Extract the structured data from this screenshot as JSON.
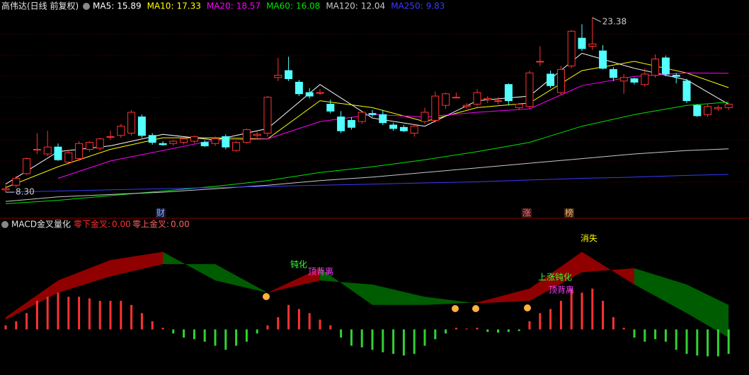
{
  "chart_data": [
    {
      "type": "candlestick",
      "title": "高伟达(日线 前复权)",
      "up_color": "#ff3232",
      "down_color": "#54ffff",
      "ylim": [
        6.6,
        23.8
      ],
      "candles": {
        "open": [
          8.5,
          8.9,
          9.9,
          12.0,
          11.6,
          12.2,
          10.9,
          11.2,
          12.0,
          12.1,
          13.1,
          13.2,
          13.4,
          14.8,
          13.2,
          12.5,
          12.5,
          12.6,
          12.7,
          12.6,
          12.5,
          13.1,
          11.9,
          12.6,
          13.2,
          13.4,
          18.2,
          18.8,
          17.8,
          16.9,
          16.9,
          15.9,
          14.8,
          14.5,
          14.4,
          15.1,
          15.0,
          14.1,
          13.9,
          13.4,
          14.4,
          14.5,
          15.8,
          16.5,
          15.7,
          15.9,
          16.3,
          16.2,
          17.6,
          15.6,
          15.7,
          19.6,
          18.5,
          16.9,
          19.2,
          21.6,
          20.9,
          20.5,
          18.9,
          17.9,
          18.1,
          17.6,
          18.4,
          19.9,
          18.4,
          17.9,
          15.8,
          15.0,
          15.5,
          15.6
        ],
        "high": [
          8.9,
          9.7,
          11.3,
          13.4,
          13.6,
          12.5,
          11.9,
          12.7,
          12.7,
          13.0,
          13.6,
          14.2,
          15.4,
          15.0,
          13.4,
          12.7,
          12.8,
          13.0,
          13.2,
          12.8,
          13.1,
          13.3,
          12.7,
          13.8,
          13.5,
          16.6,
          19.9,
          20.0,
          18.0,
          17.3,
          17.2,
          16.3,
          15.3,
          14.8,
          15.3,
          15.4,
          15.4,
          14.3,
          14.1,
          14.2,
          15.6,
          17.0,
          16.9,
          16.9,
          16.0,
          17.2,
          16.6,
          16.5,
          17.7,
          16.0,
          18.8,
          20.9,
          18.8,
          19.2,
          22.3,
          22.8,
          23.38,
          21.0,
          19.1,
          18.5,
          18.2,
          19.0,
          20.2,
          20.1,
          18.6,
          18.1,
          15.9,
          15.9,
          15.8,
          16.0
        ],
        "low": [
          8.3,
          8.7,
          9.8,
          11.6,
          11.4,
          11.0,
          10.7,
          11.0,
          11.8,
          11.9,
          12.8,
          13.0,
          13.2,
          13.0,
          12.4,
          12.3,
          12.3,
          12.4,
          12.5,
          12.2,
          12.3,
          12.0,
          11.8,
          12.5,
          13.0,
          13.1,
          17.9,
          17.9,
          16.6,
          16.4,
          16.7,
          15.1,
          13.4,
          13.7,
          14.2,
          14.8,
          14.1,
          13.6,
          13.5,
          13.1,
          14.2,
          14.3,
          15.5,
          16.4,
          15.5,
          15.7,
          16.0,
          15.9,
          15.8,
          15.4,
          15.5,
          19.2,
          17.3,
          16.7,
          19.0,
          20.5,
          20.6,
          18.9,
          17.9,
          16.8,
          17.6,
          17.4,
          18.2,
          18.3,
          17.7,
          16.0,
          14.8,
          14.8,
          15.3,
          15.4
        ],
        "close": [
          8.6,
          9.5,
          11.2,
          12.0,
          12.2,
          11.1,
          11.7,
          12.5,
          12.6,
          12.9,
          13.1,
          14.0,
          15.2,
          13.2,
          12.6,
          12.4,
          12.7,
          12.9,
          13.1,
          12.3,
          12.9,
          12.2,
          12.6,
          13.7,
          13.3,
          16.5,
          18.4,
          18.1,
          16.8,
          16.6,
          16.9,
          15.3,
          13.6,
          13.9,
          15.2,
          15.0,
          14.3,
          13.8,
          13.6,
          14.0,
          15.2,
          16.6,
          16.8,
          16.5,
          15.8,
          16.9,
          16.4,
          16.2,
          16.2,
          15.9,
          18.6,
          19.6,
          17.5,
          18.9,
          22.2,
          20.7,
          21.1,
          19.0,
          18.2,
          18.2,
          17.8,
          18.5,
          19.8,
          18.5,
          18.3,
          16.2,
          14.9,
          15.7,
          15.6,
          15.9
        ]
      },
      "ma_x": [
        0,
        5,
        10,
        15,
        20,
        25,
        30,
        35,
        40,
        45,
        50,
        55,
        60,
        65,
        69
      ],
      "series": [
        {
          "name": "MA5:",
          "last": 15.89,
          "color": "#ffffff",
          "values": [
            9.0,
            11.8,
            12.3,
            13.3,
            12.8,
            13.8,
            17.6,
            14.7,
            14.0,
            16.2,
            16.6,
            20.3,
            19.0,
            18.0,
            15.89
          ]
        },
        {
          "name": "MA10:",
          "last": 17.33,
          "color": "#ffff00",
          "values": [
            8.7,
            10.5,
            12.0,
            13.0,
            13.0,
            12.9,
            16.2,
            15.6,
            14.4,
            15.6,
            16.0,
            18.8,
            19.6,
            18.6,
            17.33
          ]
        },
        {
          "name": "MA20:",
          "last": 18.57,
          "color": "#ff00ff",
          "values": [
            null,
            9.5,
            11.0,
            11.9,
            12.8,
            12.9,
            14.4,
            15.0,
            14.8,
            15.2,
            15.5,
            17.5,
            18.3,
            18.6,
            18.57
          ]
        },
        {
          "name": "MA60:",
          "last": 16.08,
          "color": "#00e600",
          "values": [
            7.3,
            7.6,
            8.0,
            8.4,
            8.8,
            9.3,
            10.0,
            10.5,
            11.1,
            11.8,
            12.6,
            14.0,
            15.0,
            15.8,
            16.08
          ]
        },
        {
          "name": "MA120:",
          "last": 12.04,
          "color": "#c8c8c8",
          "values": [
            7.5,
            7.9,
            8.1,
            8.3,
            8.6,
            8.9,
            9.3,
            9.6,
            10.0,
            10.4,
            10.8,
            11.2,
            11.6,
            11.9,
            12.04
          ]
        },
        {
          "name": "MA250:",
          "last": 9.83,
          "color": "#3a3aff",
          "values": [
            8.3,
            8.4,
            8.5,
            8.6,
            8.7,
            8.8,
            8.9,
            9.0,
            9.1,
            9.2,
            9.35,
            9.5,
            9.6,
            9.75,
            9.83
          ]
        }
      ],
      "annotations": [
        {
          "value": 23.38,
          "label": "23.38"
        },
        {
          "value": 8.3,
          "label": "8.30"
        }
      ],
      "markers": [
        "财",
        "涨",
        "榜"
      ]
    },
    {
      "type": "macd",
      "title": "MACD金叉量化",
      "indicators": [
        {
          "name": "零下金叉:",
          "value": 0,
          "value_label": "0.00"
        },
        {
          "name": "零上金叉:",
          "value": 0,
          "value_label": "0.00"
        }
      ],
      "ylim": [
        -0.55,
        1.25
      ],
      "histogram": [
        0.05,
        0.1,
        0.2,
        0.35,
        0.4,
        0.45,
        0.4,
        0.4,
        0.38,
        0.35,
        0.35,
        0.35,
        0.3,
        0.2,
        0.1,
        0.02,
        -0.05,
        -0.1,
        -0.12,
        -0.15,
        -0.2,
        -0.25,
        -0.2,
        -0.15,
        -0.05,
        0.05,
        0.15,
        0.3,
        0.25,
        0.2,
        0.12,
        0.05,
        -0.1,
        -0.2,
        -0.22,
        -0.25,
        -0.28,
        -0.3,
        -0.32,
        -0.3,
        -0.2,
        -0.12,
        -0.05,
        0.02,
        0.01,
        0.02,
        -0.03,
        -0.04,
        -0.03,
        -0.02,
        0.1,
        0.2,
        0.25,
        0.35,
        0.5,
        0.45,
        0.5,
        0.35,
        0.15,
        0.02,
        -0.1,
        -0.15,
        -0.12,
        -0.15,
        -0.25,
        -0.3,
        -0.32,
        -0.33,
        -0.33,
        -0.3
      ],
      "x": [
        0,
        5,
        10,
        15,
        20,
        25,
        30,
        35,
        40,
        45,
        50,
        55,
        60,
        65,
        69
      ],
      "dif": [
        0.15,
        0.6,
        0.85,
        0.95,
        0.6,
        0.45,
        0.75,
        0.3,
        0.3,
        0.33,
        0.5,
        0.95,
        0.55,
        0.2,
        -0.1
      ],
      "dea": [
        0.12,
        0.45,
        0.65,
        0.8,
        0.8,
        0.45,
        0.6,
        0.55,
        0.4,
        0.32,
        0.35,
        0.7,
        0.75,
        0.55,
        0.3
      ],
      "labels": [
        "消失",
        "钝化",
        "顶背离",
        "上涨钝化",
        "顶背离"
      ]
    }
  ]
}
